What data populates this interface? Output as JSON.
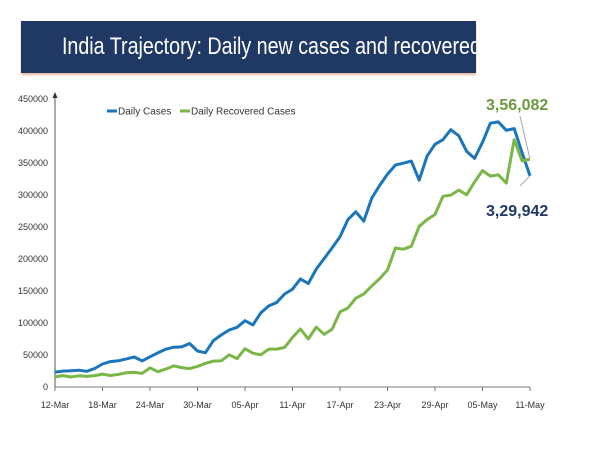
{
  "chart_data": {
    "type": "line",
    "title": "India Trajectory: Daily new cases and recovered cases",
    "xlabel": "",
    "ylabel": "",
    "ylim": [
      0,
      450000
    ],
    "yticks": [
      "0",
      "50000",
      "100000",
      "150000",
      "200000",
      "250000",
      "300000",
      "350000",
      "400000",
      "450000"
    ],
    "xticks": [
      "12-Mar",
      "18-Mar",
      "24-Mar",
      "30-Mar",
      "05-Apr",
      "11-Apr",
      "17-Apr",
      "23-Apr",
      "29-Apr",
      "05-May",
      "11-May"
    ],
    "x_range": [
      "12-Mar",
      "11-May"
    ],
    "grid": false,
    "legend": "top-center",
    "series": [
      {
        "name": "Daily Cases",
        "color": "#1b75bb",
        "values": [
          23285,
          24882,
          25320,
          26291,
          24492,
          28903,
          35871,
          39726,
          40953,
          43846,
          46951,
          40715,
          47262,
          53476,
          59118,
          62258,
          62714,
          68020,
          56211,
          53480,
          72330,
          81466,
          89129,
          93249,
          103558,
          96982,
          115736,
          126789,
          131968,
          145384,
          152879,
          168912,
          161736,
          184372,
          200739,
          217353,
          234692,
          261500,
          273810,
          259170,
          295041,
          314835,
          332730,
          346786,
          349691,
          352991,
          323144,
          360960,
          379257,
          386452,
          401993,
          392488,
          368147,
          357229,
          382315,
          412262,
          414188,
          401078,
          403738,
          366161,
          329942
        ]
      },
      {
        "name": "Daily Recovered Cases",
        "color": "#7ab648",
        "values": [
          15817,
          17741,
          15656,
          17455,
          16596,
          17741,
          20191,
          17958,
          19653,
          22184,
          22956,
          21180,
          29785,
          23907,
          27918,
          32987,
          30386,
          28785,
          32231,
          36928,
          40440,
          40935,
          50382,
          44356,
          59856,
          52847,
          50384,
          59258,
          59286,
          61899,
          77567,
          90584,
          75086,
          93528,
          82339,
          90304,
          117354,
          123423,
          138761,
          145457,
          157841,
          169279,
          182838,
          217113,
          215272,
          219827,
          251162,
          261507,
          269540,
          297988,
          299865,
          307732,
          300289,
          320439,
          338113,
          329507,
          331609,
          318609,
          386444,
          353299,
          356082
        ]
      }
    ],
    "annotations": [
      {
        "text": "3,56,082",
        "series": "Daily Recovered Cases",
        "color": "#6a9a3c"
      },
      {
        "text": "3,29,942",
        "series": "Daily Cases",
        "color": "#1f3864"
      }
    ]
  }
}
